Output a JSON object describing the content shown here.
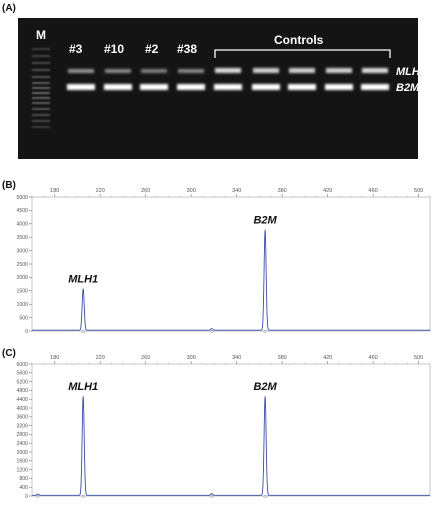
{
  "panels": {
    "a": "(A)",
    "b": "(B)",
    "c": "(C)"
  },
  "gel": {
    "marker_label": "M",
    "lanes": [
      "#3",
      "#10",
      "#2",
      "#38"
    ],
    "controls_label": "Controls",
    "band_upper": "MLH1",
    "band_lower": "B2M",
    "colors": {
      "background": "#141414",
      "band": "#ffffff"
    }
  },
  "chart_data": [
    {
      "type": "line",
      "panel": "(B)",
      "x_ticks": [
        180,
        220,
        260,
        300,
        340,
        380,
        420,
        460,
        500
      ],
      "y_ticks": [
        0,
        500,
        1000,
        1500,
        2000,
        2500,
        3000,
        3500,
        4000,
        4500,
        5000
      ],
      "xlim": [
        160,
        510
      ],
      "ylim": [
        0,
        5000
      ],
      "peaks": [
        {
          "x": 205,
          "y": 1550,
          "label": "MLH1"
        },
        {
          "x": 318,
          "y": 60,
          "label": ""
        },
        {
          "x": 365,
          "y": 3750,
          "label": "B2M"
        }
      ],
      "line_color": "#3b4fa8"
    },
    {
      "type": "line",
      "panel": "(C)",
      "x_ticks": [
        180,
        220,
        260,
        300,
        340,
        380,
        420,
        460,
        500
      ],
      "y_ticks": [
        0,
        400,
        800,
        1200,
        1600,
        2000,
        2400,
        2800,
        3200,
        3600,
        4000,
        4400,
        4800,
        5200,
        5600,
        6000
      ],
      "xlim": [
        160,
        510
      ],
      "ylim": [
        0,
        6000
      ],
      "peaks": [
        {
          "x": 205,
          "y": 4500,
          "label": "MLH1"
        },
        {
          "x": 165,
          "y": 60,
          "label": ""
        },
        {
          "x": 318,
          "y": 80,
          "label": ""
        },
        {
          "x": 365,
          "y": 4500,
          "label": "B2M"
        }
      ],
      "line_color": "#3b4fa8"
    }
  ]
}
